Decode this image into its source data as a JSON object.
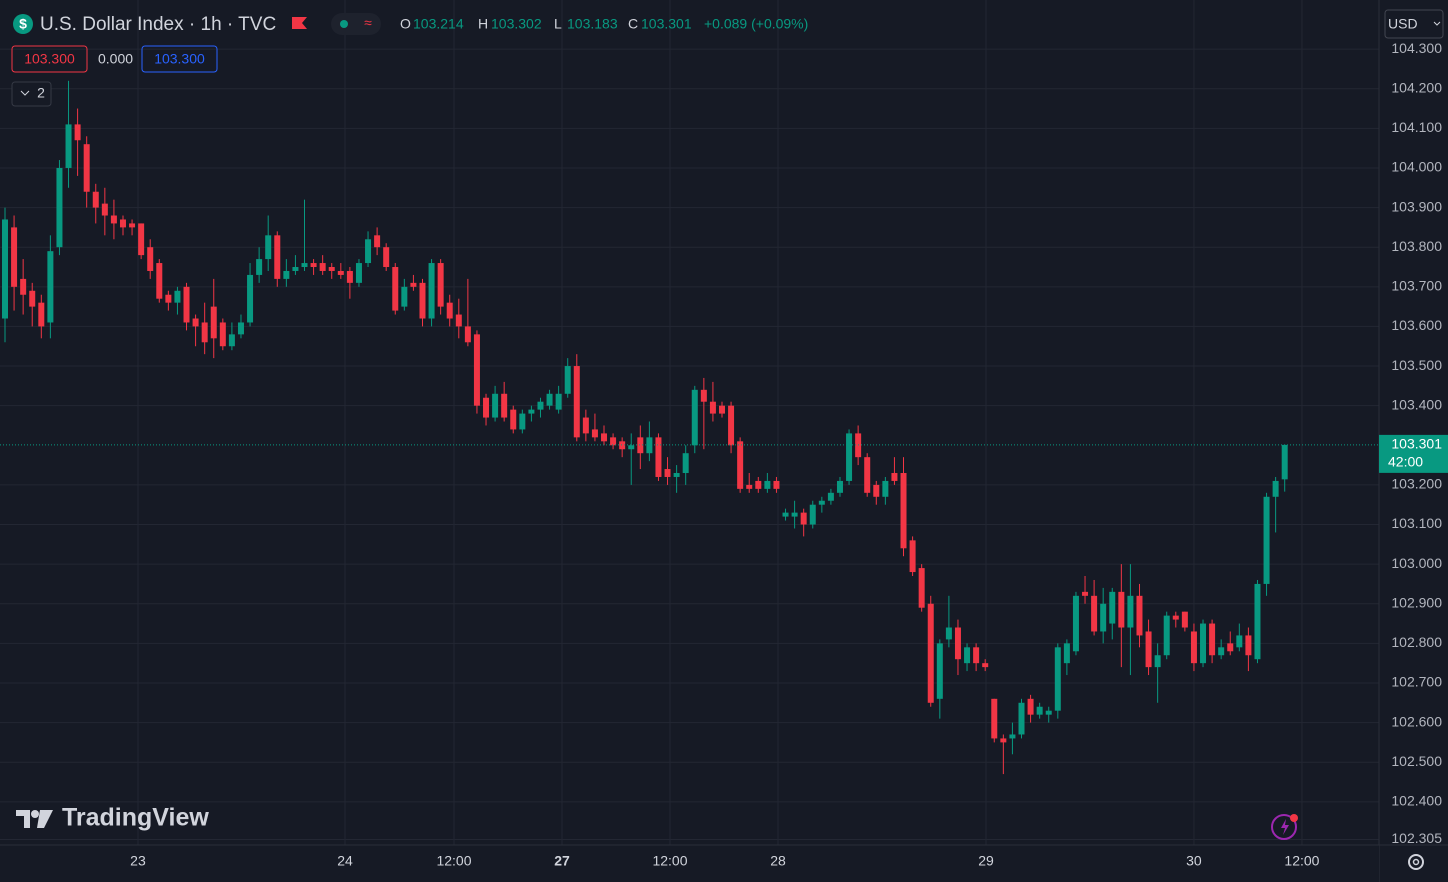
{
  "chart_data": {
    "type": "candlestick",
    "title": "U.S. Dollar Index · 1h · TVC",
    "symbol_icon": "$",
    "ohlc_labels": [
      "O",
      "H",
      "L",
      "C"
    ],
    "change": "+0.089 (+0.09%)",
    "badges": {
      "sell": "103.300",
      "spread": "0.000",
      "buy": "103.300"
    },
    "indicator_count": "2",
    "currency": "USD",
    "countdown": "42:00",
    "watermark": "TradingView",
    "up_color": "#089981",
    "down_color": "#f23645",
    "grid": true,
    "ylim": [
      102.291,
      104.424
    ],
    "yticks": [
      {
        "value": 102.305,
        "label": "102.305"
      },
      {
        "value": 102.4,
        "label": "102.400"
      },
      {
        "value": 102.5,
        "label": "102.500"
      },
      {
        "value": 102.6,
        "label": "102.600"
      },
      {
        "value": 102.7,
        "label": "102.700"
      },
      {
        "value": 102.8,
        "label": "102.800"
      },
      {
        "value": 102.9,
        "label": "102.900"
      },
      {
        "value": 103.0,
        "label": "103.000"
      },
      {
        "value": 103.1,
        "label": "103.100"
      },
      {
        "value": 103.2,
        "label": "103.200"
      },
      {
        "value": 103.4,
        "label": "103.400"
      },
      {
        "value": 103.5,
        "label": "103.500"
      },
      {
        "value": 103.6,
        "label": "103.600"
      },
      {
        "value": 103.7,
        "label": "103.700"
      },
      {
        "value": 103.8,
        "label": "103.800"
      },
      {
        "value": 103.9,
        "label": "103.900"
      },
      {
        "value": 104.0,
        "label": "104.000"
      },
      {
        "value": 104.1,
        "label": "104.100"
      },
      {
        "value": 104.2,
        "label": "104.200"
      },
      {
        "value": 104.3,
        "label": "104.300"
      }
    ],
    "xticks": [
      {
        "value": 14.65,
        "label": "23"
      },
      {
        "value": 37.46,
        "label": "24"
      },
      {
        "value": 49.47,
        "label": "12:00"
      },
      {
        "value": 61.37,
        "label": "27"
      },
      {
        "value": 73.27,
        "label": "12:00"
      },
      {
        "value": 85.17,
        "label": "28"
      },
      {
        "value": 108.09,
        "label": "29"
      },
      {
        "value": 131.0,
        "label": "30"
      },
      {
        "value": 142.9,
        "label": "12:00"
      }
    ],
    "candles": [
      {
        "open": 103.62,
        "high": 103.9,
        "low": 103.56,
        "close": 103.87
      },
      {
        "open": 103.85,
        "high": 103.88,
        "low": 103.64,
        "close": 103.7
      },
      {
        "open": 103.72,
        "high": 103.77,
        "low": 103.63,
        "close": 103.68
      },
      {
        "open": 103.69,
        "high": 103.71,
        "low": 103.6,
        "close": 103.65
      },
      {
        "open": 103.66,
        "high": 103.68,
        "low": 103.57,
        "close": 103.6
      },
      {
        "open": 103.61,
        "high": 103.83,
        "low": 103.57,
        "close": 103.79
      },
      {
        "open": 103.8,
        "high": 104.02,
        "low": 103.78,
        "close": 104.0
      },
      {
        "open": 104.0,
        "high": 104.22,
        "low": 103.95,
        "close": 104.11
      },
      {
        "open": 104.11,
        "high": 104.15,
        "low": 103.98,
        "close": 104.07
      },
      {
        "open": 104.06,
        "high": 104.08,
        "low": 103.9,
        "close": 103.94
      },
      {
        "open": 103.94,
        "high": 103.96,
        "low": 103.86,
        "close": 103.9
      },
      {
        "open": 103.91,
        "high": 103.95,
        "low": 103.83,
        "close": 103.88
      },
      {
        "open": 103.88,
        "high": 103.92,
        "low": 103.82,
        "close": 103.86
      },
      {
        "open": 103.87,
        "high": 103.88,
        "low": 103.83,
        "close": 103.85
      },
      {
        "open": 103.86,
        "high": 103.87,
        "low": 103.83,
        "close": 103.85
      },
      {
        "open": 103.86,
        "high": 103.86,
        "low": 103.77,
        "close": 103.78
      },
      {
        "open": 103.8,
        "high": 103.82,
        "low": 103.72,
        "close": 103.74
      },
      {
        "open": 103.76,
        "high": 103.77,
        "low": 103.66,
        "close": 103.67
      },
      {
        "open": 103.68,
        "high": 103.69,
        "low": 103.64,
        "close": 103.66
      },
      {
        "open": 103.66,
        "high": 103.7,
        "low": 103.63,
        "close": 103.69
      },
      {
        "open": 103.7,
        "high": 103.71,
        "low": 103.59,
        "close": 103.61
      },
      {
        "open": 103.62,
        "high": 103.63,
        "low": 103.55,
        "close": 103.6
      },
      {
        "open": 103.61,
        "high": 103.66,
        "low": 103.53,
        "close": 103.56
      },
      {
        "open": 103.65,
        "high": 103.72,
        "low": 103.52,
        "close": 103.57
      },
      {
        "open": 103.61,
        "high": 103.62,
        "low": 103.54,
        "close": 103.55
      },
      {
        "open": 103.55,
        "high": 103.61,
        "low": 103.54,
        "close": 103.58
      },
      {
        "open": 103.58,
        "high": 103.63,
        "low": 103.57,
        "close": 103.61
      },
      {
        "open": 103.61,
        "high": 103.76,
        "low": 103.6,
        "close": 103.73
      },
      {
        "open": 103.73,
        "high": 103.8,
        "low": 103.71,
        "close": 103.77
      },
      {
        "open": 103.77,
        "high": 103.88,
        "low": 103.74,
        "close": 103.83
      },
      {
        "open": 103.83,
        "high": 103.84,
        "low": 103.7,
        "close": 103.72
      },
      {
        "open": 103.72,
        "high": 103.77,
        "low": 103.7,
        "close": 103.74
      },
      {
        "open": 103.74,
        "high": 103.78,
        "low": 103.73,
        "close": 103.75
      },
      {
        "open": 103.75,
        "high": 103.92,
        "low": 103.74,
        "close": 103.76
      },
      {
        "open": 103.76,
        "high": 103.77,
        "low": 103.73,
        "close": 103.75
      },
      {
        "open": 103.76,
        "high": 103.78,
        "low": 103.73,
        "close": 103.74
      },
      {
        "open": 103.75,
        "high": 103.76,
        "low": 103.72,
        "close": 103.74
      },
      {
        "open": 103.74,
        "high": 103.76,
        "low": 103.72,
        "close": 103.73
      },
      {
        "open": 103.74,
        "high": 103.75,
        "low": 103.67,
        "close": 103.71
      },
      {
        "open": 103.71,
        "high": 103.77,
        "low": 103.7,
        "close": 103.76
      },
      {
        "open": 103.76,
        "high": 103.84,
        "low": 103.75,
        "close": 103.82
      },
      {
        "open": 103.83,
        "high": 103.85,
        "low": 103.78,
        "close": 103.8
      },
      {
        "open": 103.8,
        "high": 103.81,
        "low": 103.74,
        "close": 103.75
      },
      {
        "open": 103.75,
        "high": 103.76,
        "low": 103.63,
        "close": 103.64
      },
      {
        "open": 103.65,
        "high": 103.72,
        "low": 103.64,
        "close": 103.7
      },
      {
        "open": 103.71,
        "high": 103.73,
        "low": 103.69,
        "close": 103.7
      },
      {
        "open": 103.71,
        "high": 103.72,
        "low": 103.6,
        "close": 103.62
      },
      {
        "open": 103.62,
        "high": 103.77,
        "low": 103.6,
        "close": 103.76
      },
      {
        "open": 103.76,
        "high": 103.77,
        "low": 103.63,
        "close": 103.65
      },
      {
        "open": 103.66,
        "high": 103.68,
        "low": 103.6,
        "close": 103.62
      },
      {
        "open": 103.63,
        "high": 103.67,
        "low": 103.57,
        "close": 103.6
      },
      {
        "open": 103.6,
        "high": 103.72,
        "low": 103.55,
        "close": 103.56
      },
      {
        "open": 103.58,
        "high": 103.59,
        "low": 103.38,
        "close": 103.4
      },
      {
        "open": 103.42,
        "high": 103.43,
        "low": 103.35,
        "close": 103.37
      },
      {
        "open": 103.37,
        "high": 103.45,
        "low": 103.36,
        "close": 103.43
      },
      {
        "open": 103.43,
        "high": 103.46,
        "low": 103.36,
        "close": 103.37
      },
      {
        "open": 103.39,
        "high": 103.4,
        "low": 103.33,
        "close": 103.34
      },
      {
        "open": 103.34,
        "high": 103.39,
        "low": 103.33,
        "close": 103.38
      },
      {
        "open": 103.38,
        "high": 103.4,
        "low": 103.36,
        "close": 103.39
      },
      {
        "open": 103.39,
        "high": 103.42,
        "low": 103.37,
        "close": 103.41
      },
      {
        "open": 103.4,
        "high": 103.44,
        "low": 103.39,
        "close": 103.43
      },
      {
        "open": 103.39,
        "high": 103.45,
        "low": 103.38,
        "close": 103.43
      },
      {
        "open": 103.43,
        "high": 103.52,
        "low": 103.42,
        "close": 103.5
      },
      {
        "open": 103.5,
        "high": 103.53,
        "low": 103.31,
        "close": 103.32
      },
      {
        "open": 103.37,
        "high": 103.39,
        "low": 103.31,
        "close": 103.33
      },
      {
        "open": 103.34,
        "high": 103.38,
        "low": 103.31,
        "close": 103.32
      },
      {
        "open": 103.33,
        "high": 103.35,
        "low": 103.3,
        "close": 103.31
      },
      {
        "open": 103.32,
        "high": 103.33,
        "low": 103.29,
        "close": 103.3
      },
      {
        "open": 103.31,
        "high": 103.32,
        "low": 103.27,
        "close": 103.29
      },
      {
        "open": 103.29,
        "high": 103.33,
        "low": 103.2,
        "close": 103.3
      },
      {
        "open": 103.32,
        "high": 103.35,
        "low": 103.24,
        "close": 103.28
      },
      {
        "open": 103.28,
        "high": 103.36,
        "low": 103.26,
        "close": 103.32
      },
      {
        "open": 103.32,
        "high": 103.33,
        "low": 103.21,
        "close": 103.22
      },
      {
        "open": 103.24,
        "high": 103.27,
        "low": 103.2,
        "close": 103.22
      },
      {
        "open": 103.22,
        "high": 103.25,
        "low": 103.18,
        "close": 103.23
      },
      {
        "open": 103.23,
        "high": 103.3,
        "low": 103.2,
        "close": 103.28
      },
      {
        "open": 103.3,
        "high": 103.45,
        "low": 103.28,
        "close": 103.44
      },
      {
        "open": 103.44,
        "high": 103.47,
        "low": 103.29,
        "close": 103.41
      },
      {
        "open": 103.41,
        "high": 103.46,
        "low": 103.36,
        "close": 103.38
      },
      {
        "open": 103.4,
        "high": 103.41,
        "low": 103.37,
        "close": 103.38
      },
      {
        "open": 103.4,
        "high": 103.41,
        "low": 103.28,
        "close": 103.3
      },
      {
        "open": 103.31,
        "high": 103.32,
        "low": 103.18,
        "close": 103.19
      },
      {
        "open": 103.2,
        "high": 103.23,
        "low": 103.18,
        "close": 103.19
      },
      {
        "open": 103.21,
        "high": 103.22,
        "low": 103.18,
        "close": 103.19
      },
      {
        "open": 103.19,
        "high": 103.23,
        "low": 103.18,
        "close": 103.21
      },
      {
        "open": 103.21,
        "high": 103.22,
        "low": 103.18,
        "close": 103.19
      },
      {
        "open": 103.12,
        "high": 103.14,
        "low": 103.11,
        "close": 103.13
      },
      {
        "open": 103.12,
        "high": 103.16,
        "low": 103.09,
        "close": 103.13
      },
      {
        "open": 103.13,
        "high": 103.14,
        "low": 103.07,
        "close": 103.1
      },
      {
        "open": 103.1,
        "high": 103.16,
        "low": 103.09,
        "close": 103.15
      },
      {
        "open": 103.15,
        "high": 103.17,
        "low": 103.13,
        "close": 103.16
      },
      {
        "open": 103.16,
        "high": 103.19,
        "low": 103.15,
        "close": 103.18
      },
      {
        "open": 103.18,
        "high": 103.22,
        "low": 103.17,
        "close": 103.21
      },
      {
        "open": 103.21,
        "high": 103.34,
        "low": 103.2,
        "close": 103.33
      },
      {
        "open": 103.33,
        "high": 103.35,
        "low": 103.25,
        "close": 103.27
      },
      {
        "open": 103.27,
        "high": 103.28,
        "low": 103.17,
        "close": 103.18
      },
      {
        "open": 103.2,
        "high": 103.21,
        "low": 103.15,
        "close": 103.17
      },
      {
        "open": 103.17,
        "high": 103.22,
        "low": 103.15,
        "close": 103.21
      },
      {
        "open": 103.23,
        "high": 103.27,
        "low": 103.2,
        "close": 103.21
      },
      {
        "open": 103.23,
        "high": 103.27,
        "low": 103.02,
        "close": 103.04
      },
      {
        "open": 103.06,
        "high": 103.07,
        "low": 102.97,
        "close": 102.98
      },
      {
        "open": 102.99,
        "high": 103.0,
        "low": 102.88,
        "close": 102.89
      },
      {
        "open": 102.9,
        "high": 102.92,
        "low": 102.64,
        "close": 102.65
      },
      {
        "open": 102.66,
        "high": 102.81,
        "low": 102.61,
        "close": 102.8
      },
      {
        "open": 102.81,
        "high": 102.92,
        "low": 102.79,
        "close": 102.84
      },
      {
        "open": 102.84,
        "high": 102.86,
        "low": 102.72,
        "close": 102.76
      },
      {
        "open": 102.75,
        "high": 102.8,
        "low": 102.73,
        "close": 102.79
      },
      {
        "open": 102.79,
        "high": 102.8,
        "low": 102.73,
        "close": 102.75
      },
      {
        "open": 102.75,
        "high": 102.76,
        "low": 102.73,
        "close": 102.74
      },
      {
        "open": 102.66,
        "high": 102.66,
        "low": 102.55,
        "close": 102.56
      },
      {
        "open": 102.56,
        "high": 102.57,
        "low": 102.47,
        "close": 102.55
      },
      {
        "open": 102.56,
        "high": 102.6,
        "low": 102.52,
        "close": 102.57
      },
      {
        "open": 102.57,
        "high": 102.66,
        "low": 102.56,
        "close": 102.65
      },
      {
        "open": 102.66,
        "high": 102.67,
        "low": 102.6,
        "close": 102.62
      },
      {
        "open": 102.62,
        "high": 102.65,
        "low": 102.61,
        "close": 102.64
      },
      {
        "open": 102.62,
        "high": 102.64,
        "low": 102.6,
        "close": 102.63
      },
      {
        "open": 102.63,
        "high": 102.8,
        "low": 102.61,
        "close": 102.79
      },
      {
        "open": 102.75,
        "high": 102.81,
        "low": 102.72,
        "close": 102.8
      },
      {
        "open": 102.78,
        "high": 102.93,
        "low": 102.77,
        "close": 102.92
      },
      {
        "open": 102.93,
        "high": 102.97,
        "low": 102.9,
        "close": 102.92
      },
      {
        "open": 102.92,
        "high": 102.96,
        "low": 102.82,
        "close": 102.83
      },
      {
        "open": 102.83,
        "high": 102.94,
        "low": 102.8,
        "close": 102.9
      },
      {
        "open": 102.85,
        "high": 102.94,
        "low": 102.81,
        "close": 102.93
      },
      {
        "open": 102.93,
        "high": 103.0,
        "low": 102.74,
        "close": 102.84
      },
      {
        "open": 102.84,
        "high": 103.0,
        "low": 102.72,
        "close": 102.92
      },
      {
        "open": 102.92,
        "high": 102.95,
        "low": 102.79,
        "close": 102.82
      },
      {
        "open": 102.83,
        "high": 102.86,
        "low": 102.72,
        "close": 102.74
      },
      {
        "open": 102.74,
        "high": 102.8,
        "low": 102.65,
        "close": 102.77
      },
      {
        "open": 102.77,
        "high": 102.88,
        "low": 102.76,
        "close": 102.87
      },
      {
        "open": 102.87,
        "high": 102.88,
        "low": 102.84,
        "close": 102.86
      },
      {
        "open": 102.88,
        "high": 102.88,
        "low": 102.83,
        "close": 102.84
      },
      {
        "open": 102.83,
        "high": 102.85,
        "low": 102.73,
        "close": 102.75
      },
      {
        "open": 102.75,
        "high": 102.86,
        "low": 102.74,
        "close": 102.85
      },
      {
        "open": 102.85,
        "high": 102.86,
        "low": 102.75,
        "close": 102.77
      },
      {
        "open": 102.77,
        "high": 102.81,
        "low": 102.76,
        "close": 102.79
      },
      {
        "open": 102.8,
        "high": 102.83,
        "low": 102.77,
        "close": 102.78
      },
      {
        "open": 102.79,
        "high": 102.85,
        "low": 102.78,
        "close": 102.82
      },
      {
        "open": 102.82,
        "high": 102.84,
        "low": 102.73,
        "close": 102.77
      },
      {
        "open": 102.76,
        "high": 102.96,
        "low": 102.75,
        "close": 102.95
      },
      {
        "open": 102.95,
        "high": 103.18,
        "low": 102.92,
        "close": 103.17
      },
      {
        "open": 103.17,
        "high": 103.22,
        "low": 103.08,
        "close": 103.21
      },
      {
        "open": 103.214,
        "high": 103.302,
        "low": 103.183,
        "close": 103.301
      }
    ]
  }
}
